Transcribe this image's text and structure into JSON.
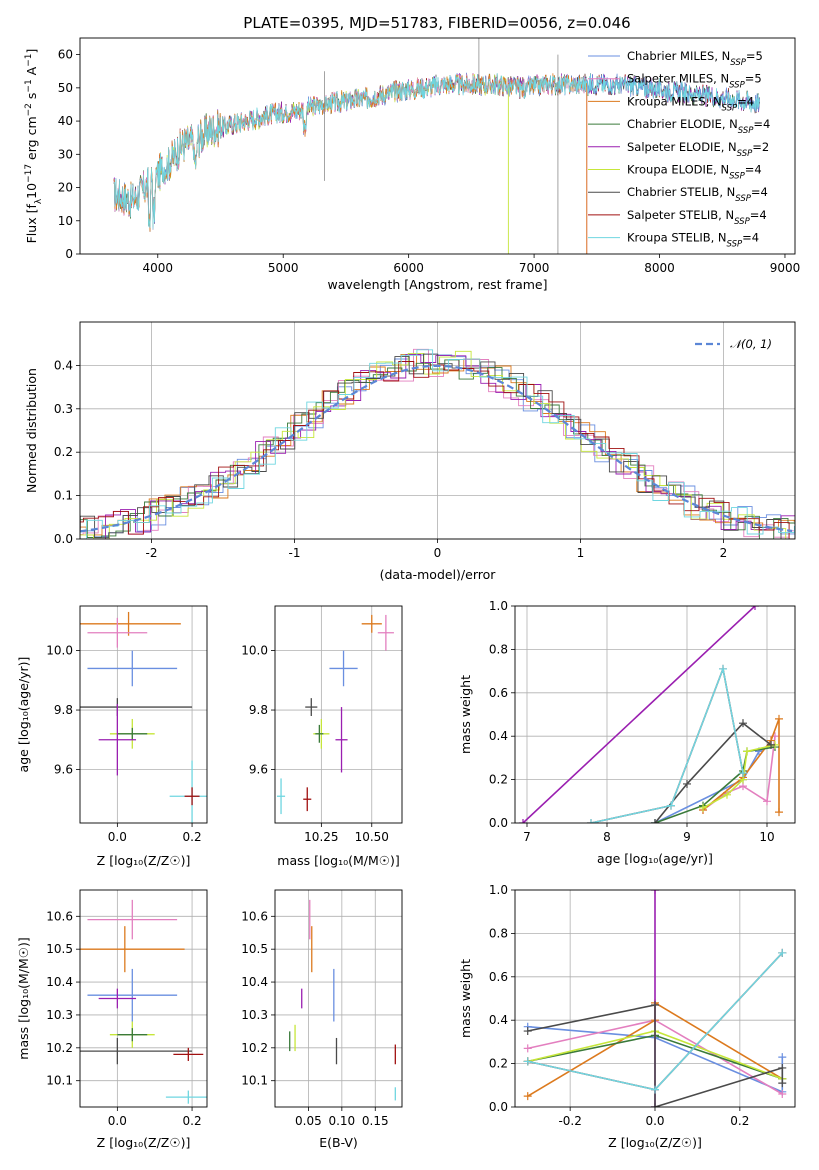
{
  "title": "PLATE=0395, MJD=51783, FIBERID=0056, z=0.046",
  "colors": {
    "Chabrier MILES": "#6a8fe0",
    "Salpeter MILES": "#e37fbf",
    "Kroupa MILES": "#dc7a1e",
    "Chabrier ELODIE": "#3a7a3a",
    "Salpeter ELODIE": "#9a1fb0",
    "Kroupa ELODIE": "#c6e63a",
    "Chabrier STELIB": "#4a4a4a",
    "Salpeter STELIB": "#a01010",
    "Kroupa STELIB": "#6fd6e0"
  },
  "chart_data": [
    {
      "id": "spectrum",
      "type": "line",
      "title": "PLATE=0395, MJD=51783, FIBERID=0056, z=0.046",
      "xlabel": "wavelength [Angstrom, rest frame]",
      "ylabel": "Flux [f_λ10^-17 erg cm^-2 s^-1 A^-1]",
      "xlim": [
        3380,
        9080
      ],
      "ylim": [
        0,
        65
      ],
      "xticks": [
        4000,
        5000,
        6000,
        7000,
        8000,
        9000
      ],
      "yticks": [
        0,
        10,
        20,
        30,
        40,
        50,
        60
      ],
      "legend": "top-right",
      "legend_entries": [
        {
          "series": "Chabrier MILES",
          "base": "Chabrier MILES, N",
          "sub": "SSP",
          "tail": "=5"
        },
        {
          "series": "Salpeter MILES",
          "base": "Salpeter MILES, N",
          "sub": "SSP",
          "tail": "=5"
        },
        {
          "series": "Kroupa MILES",
          "base": "Kroupa MILES, N",
          "sub": "SSP",
          "tail": "=4"
        },
        {
          "series": "Chabrier ELODIE",
          "base": "Chabrier ELODIE, N",
          "sub": "SSP",
          "tail": "=4"
        },
        {
          "series": "Salpeter ELODIE",
          "base": "Salpeter ELODIE, N",
          "sub": "SSP",
          "tail": "=2"
        },
        {
          "series": "Kroupa ELODIE",
          "base": "Kroupa ELODIE, N",
          "sub": "SSP",
          "tail": "=4"
        },
        {
          "series": "Chabrier STELIB",
          "base": "Chabrier STELIB, N",
          "sub": "SSP",
          "tail": "=4"
        },
        {
          "series": "Salpeter STELIB",
          "base": "Salpeter STELIB, N",
          "sub": "SSP",
          "tail": "=4"
        },
        {
          "series": "Kroupa STELIB",
          "base": "Kroupa STELIB, N",
          "sub": "SSP",
          "tail": "=4"
        }
      ],
      "continuum": [
        [
          3650,
          18
        ],
        [
          3800,
          16
        ],
        [
          3900,
          20
        ],
        [
          4000,
          24
        ],
        [
          4100,
          28
        ],
        [
          4200,
          33
        ],
        [
          4300,
          34
        ],
        [
          4400,
          37
        ],
        [
          4500,
          38
        ],
        [
          4700,
          40
        ],
        [
          4900,
          42
        ],
        [
          5100,
          43
        ],
        [
          5300,
          45
        ],
        [
          5500,
          46
        ],
        [
          5700,
          47
        ],
        [
          5900,
          49
        ],
        [
          6100,
          50
        ],
        [
          6300,
          51
        ],
        [
          6500,
          51
        ],
        [
          6700,
          51
        ],
        [
          6900,
          50
        ],
        [
          7100,
          51
        ],
        [
          7300,
          51
        ],
        [
          7500,
          51
        ],
        [
          7700,
          51
        ],
        [
          7900,
          50
        ],
        [
          8100,
          49
        ],
        [
          8300,
          48
        ],
        [
          8500,
          47
        ],
        [
          8700,
          46
        ],
        [
          8800,
          45
        ]
      ]
    },
    {
      "id": "residuals",
      "type": "line",
      "xlabel": "(data-model)/error",
      "ylabel": "Normed distribution",
      "xlim": [
        -2.5,
        2.5
      ],
      "ylim": [
        0,
        0.5
      ],
      "xticks": [
        -2,
        -1,
        0,
        1,
        2
      ],
      "yticks": [
        0.0,
        0.1,
        0.2,
        0.3,
        0.4
      ],
      "legend": "top-right",
      "legend_label": "𝒩(0, 1)",
      "series": [
        "Chabrier MILES",
        "Salpeter MILES",
        "Kroupa MILES",
        "Chabrier ELODIE",
        "Salpeter ELODIE",
        "Kroupa ELODIE",
        "Chabrier STELIB",
        "Salpeter STELIB",
        "Kroupa STELIB"
      ]
    },
    {
      "id": "age_vs_Z",
      "type": "scatter",
      "xlabel": "Z [log10(Z/Z⊙)]",
      "ylabel": "age [log10(age/yr)]",
      "xlim": [
        -0.1,
        0.24
      ],
      "ylim": [
        9.42,
        10.15
      ],
      "xticks": [
        0.0,
        0.2
      ],
      "yticks": [
        9.6,
        9.8,
        10.0
      ],
      "points": [
        {
          "series": "Kroupa MILES",
          "x": 0.03,
          "y": 10.09,
          "xerr": 0.14,
          "yerr": 0.04
        },
        {
          "series": "Salpeter MILES",
          "x": 0.0,
          "y": 10.06,
          "xerr": 0.08,
          "yerr": 0.05
        },
        {
          "series": "Chabrier MILES",
          "x": 0.04,
          "y": 9.94,
          "xerr": 0.12,
          "yerr": 0.06
        },
        {
          "series": "Chabrier STELIB",
          "x": 0.0,
          "y": 9.81,
          "xerr": 0.2,
          "yerr": 0.03
        },
        {
          "series": "Kroupa ELODIE",
          "x": 0.04,
          "y": 9.72,
          "xerr": 0.06,
          "yerr": 0.05
        },
        {
          "series": "Chabrier ELODIE",
          "x": 0.04,
          "y": 9.72,
          "xerr": 0.04,
          "yerr": 0.02
        },
        {
          "series": "Salpeter ELODIE",
          "x": 0.0,
          "y": 9.7,
          "xerr": 0.05,
          "yerr": 0.12
        },
        {
          "series": "Kroupa STELIB",
          "x": 0.2,
          "y": 9.51,
          "xerr": 0.06,
          "yerr": 0.12
        },
        {
          "series": "Salpeter STELIB",
          "x": 0.2,
          "y": 9.51,
          "xerr": 0.02,
          "yerr": 0.03
        }
      ]
    },
    {
      "id": "age_vs_mass",
      "type": "scatter",
      "xlabel": "mass [log10(M/M⊙)]",
      "ylabel": "",
      "xlim": [
        10.02,
        10.65
      ],
      "ylim": [
        9.42,
        10.15
      ],
      "xticks": [
        10.25,
        10.5
      ],
      "yticks": [
        9.6,
        9.8,
        10.0
      ],
      "points": [
        {
          "series": "Kroupa MILES",
          "x": 10.5,
          "y": 10.09,
          "xerr": 0.05,
          "yerr": 0.03
        },
        {
          "series": "Salpeter MILES",
          "x": 10.57,
          "y": 10.06,
          "xerr": 0.04,
          "yerr": 0.06
        },
        {
          "series": "Chabrier MILES",
          "x": 10.36,
          "y": 9.94,
          "xerr": 0.07,
          "yerr": 0.06
        },
        {
          "series": "Chabrier STELIB",
          "x": 10.2,
          "y": 9.81,
          "xerr": 0.03,
          "yerr": 0.03
        },
        {
          "series": "Kroupa ELODIE",
          "x": 10.25,
          "y": 9.72,
          "xerr": 0.04,
          "yerr": 0.05
        },
        {
          "series": "Chabrier ELODIE",
          "x": 10.24,
          "y": 9.72,
          "xerr": 0.02,
          "yerr": 0.03
        },
        {
          "series": "Salpeter ELODIE",
          "x": 10.35,
          "y": 9.7,
          "xerr": 0.03,
          "yerr": 0.11
        },
        {
          "series": "Salpeter STELIB",
          "x": 10.18,
          "y": 9.5,
          "xerr": 0.02,
          "yerr": 0.04
        },
        {
          "series": "Kroupa STELIB",
          "x": 10.05,
          "y": 9.51,
          "xerr": 0.02,
          "yerr": 0.06
        }
      ]
    },
    {
      "id": "weight_vs_age",
      "type": "line",
      "xlabel": "age [log10(age/yr)]",
      "ylabel": "mass weight",
      "xlim": [
        6.85,
        10.35
      ],
      "ylim": [
        0,
        1.0
      ],
      "xticks": [
        7,
        8,
        9,
        10
      ],
      "yticks": [
        0.0,
        0.2,
        0.4,
        0.6,
        0.8,
        1.0
      ],
      "series": [
        {
          "name": "Chabrier MILES",
          "x": [
            8.6,
            9.7,
            9.9,
            10.05
          ],
          "y": [
            0.0,
            0.2,
            0.33,
            0.36
          ]
        },
        {
          "name": "Salpeter MILES",
          "x": [
            9.2,
            9.5,
            9.7,
            10.0,
            10.1
          ],
          "y": [
            0.06,
            0.14,
            0.17,
            0.1,
            0.4
          ]
        },
        {
          "name": "Kroupa MILES",
          "x": [
            9.2,
            9.7,
            10.05,
            10.15,
            10.15
          ],
          "y": [
            0.06,
            0.21,
            0.38,
            0.48,
            0.05
          ]
        },
        {
          "name": "Chabrier ELODIE",
          "x": [
            8.6,
            9.2,
            9.7,
            9.75,
            10.1
          ],
          "y": [
            0.0,
            0.08,
            0.24,
            0.33,
            0.35
          ]
        },
        {
          "name": "Salpeter ELODIE",
          "x": [
            6.95,
            9.85
          ],
          "y": [
            0.0,
            1.0
          ]
        },
        {
          "name": "Kroupa ELODIE",
          "x": [
            9.2,
            9.5,
            9.7,
            9.75,
            10.1
          ],
          "y": [
            0.07,
            0.13,
            0.2,
            0.33,
            0.36
          ]
        },
        {
          "name": "Chabrier STELIB",
          "x": [
            8.6,
            9.0,
            9.7,
            10.05
          ],
          "y": [
            0.0,
            0.18,
            0.46,
            0.36
          ]
        },
        {
          "name": "Salpeter STELIB",
          "x": [
            7.8,
            8.8,
            9.45,
            9.7
          ],
          "y": [
            0.0,
            0.08,
            0.71,
            0.23
          ]
        },
        {
          "name": "Kroupa STELIB",
          "x": [
            7.8,
            8.8,
            9.45,
            9.7
          ],
          "y": [
            0.0,
            0.08,
            0.71,
            0.23
          ]
        }
      ]
    },
    {
      "id": "mass_vs_Z",
      "type": "scatter",
      "xlabel": "Z [log10(Z/Z⊙)]",
      "ylabel": "mass [log10(M/M⊙)]",
      "xlim": [
        -0.1,
        0.24
      ],
      "ylim": [
        10.02,
        10.68
      ],
      "xticks": [
        0.0,
        0.2
      ],
      "yticks": [
        10.1,
        10.2,
        10.3,
        10.4,
        10.5,
        10.6
      ],
      "points": [
        {
          "series": "Salpeter MILES",
          "x": 0.04,
          "y": 10.59,
          "xerr": 0.12,
          "yerr": 0.06
        },
        {
          "series": "Kroupa MILES",
          "x": 0.02,
          "y": 10.5,
          "xerr": 0.16,
          "yerr": 0.07
        },
        {
          "series": "Chabrier MILES",
          "x": 0.04,
          "y": 10.36,
          "xerr": 0.12,
          "yerr": 0.08
        },
        {
          "series": "Salpeter ELODIE",
          "x": 0.0,
          "y": 10.35,
          "xerr": 0.05,
          "yerr": 0.03
        },
        {
          "series": "Kroupa ELODIE",
          "x": 0.04,
          "y": 10.24,
          "xerr": 0.06,
          "yerr": 0.04
        },
        {
          "series": "Chabrier ELODIE",
          "x": 0.04,
          "y": 10.24,
          "xerr": 0.04,
          "yerr": 0.02
        },
        {
          "series": "Chabrier STELIB",
          "x": 0.0,
          "y": 10.19,
          "xerr": 0.2,
          "yerr": 0.04
        },
        {
          "series": "Salpeter STELIB",
          "x": 0.19,
          "y": 10.18,
          "xerr": 0.04,
          "yerr": 0.02
        },
        {
          "series": "Kroupa STELIB",
          "x": 0.19,
          "y": 10.05,
          "xerr": 0.06,
          "yerr": 0.02
        }
      ]
    },
    {
      "id": "mass_vs_EBV",
      "type": "scatter",
      "xlabel": "E(B-V)",
      "ylabel": "",
      "xlim": [
        0.0,
        0.19
      ],
      "ylim": [
        10.02,
        10.68
      ],
      "xticks": [
        0.05,
        0.1,
        0.15
      ],
      "yticks": [
        10.1,
        10.2,
        10.3,
        10.4,
        10.5,
        10.6
      ],
      "points": [
        {
          "series": "Salpeter MILES",
          "x": 0.052,
          "y": 10.59,
          "yerr": 0.06
        },
        {
          "series": "Kroupa MILES",
          "x": 0.055,
          "y": 10.5,
          "yerr": 0.07
        },
        {
          "series": "Chabrier MILES",
          "x": 0.088,
          "y": 10.36,
          "yerr": 0.08
        },
        {
          "series": "Salpeter ELODIE",
          "x": 0.04,
          "y": 10.35,
          "yerr": 0.03
        },
        {
          "series": "Kroupa ELODIE",
          "x": 0.03,
          "y": 10.23,
          "yerr": 0.04
        },
        {
          "series": "Chabrier ELODIE",
          "x": 0.022,
          "y": 10.22,
          "yerr": 0.03
        },
        {
          "series": "Chabrier STELIB",
          "x": 0.092,
          "y": 10.19,
          "yerr": 0.04
        },
        {
          "series": "Salpeter STELIB",
          "x": 0.18,
          "y": 10.18,
          "yerr": 0.03
        },
        {
          "series": "Kroupa STELIB",
          "x": 0.18,
          "y": 10.06,
          "yerr": 0.02
        }
      ]
    },
    {
      "id": "weight_vs_Z",
      "type": "line",
      "xlabel": "Z [log10(Z/Z⊙)]",
      "ylabel": "mass weight",
      "xlim": [
        -0.33,
        0.33
      ],
      "ylim": [
        0,
        1.0
      ],
      "xticks": [
        -0.2,
        0.0,
        0.2
      ],
      "yticks": [
        0.0,
        0.2,
        0.4,
        0.6,
        0.8,
        1.0
      ],
      "series": [
        {
          "name": "Chabrier MILES",
          "x": [
            -0.3,
            0.0,
            0.3,
            0.3
          ],
          "y": [
            0.37,
            0.32,
            0.07,
            0.23
          ]
        },
        {
          "name": "Salpeter MILES",
          "x": [
            -0.3,
            0.0,
            0.3
          ],
          "y": [
            0.27,
            0.4,
            0.06
          ]
        },
        {
          "name": "Kroupa MILES",
          "x": [
            -0.3,
            0.0,
            0.0,
            0.3
          ],
          "y": [
            0.05,
            0.4,
            0.48,
            0.13
          ]
        },
        {
          "name": "Chabrier ELODIE",
          "x": [
            -0.3,
            0.0,
            0.3
          ],
          "y": [
            0.21,
            0.33,
            0.13
          ]
        },
        {
          "name": "Salpeter ELODIE",
          "x": [
            0.0,
            0.0
          ],
          "y": [
            0.0,
            1.0
          ]
        },
        {
          "name": "Kroupa ELODIE",
          "x": [
            -0.3,
            0.0,
            0.3
          ],
          "y": [
            0.21,
            0.35,
            0.13
          ]
        },
        {
          "name": "Chabrier STELIB",
          "x": [
            -0.3,
            0.0,
            0.0,
            0.3,
            0.3
          ],
          "y": [
            0.35,
            0.47,
            0.0,
            0.18,
            0.11
          ]
        },
        {
          "name": "Salpeter STELIB",
          "x": [
            -0.3,
            0.0,
            0.3
          ],
          "y": [
            0.21,
            0.08,
            0.71
          ]
        },
        {
          "name": "Kroupa STELIB",
          "x": [
            -0.3,
            0.0,
            0.3
          ],
          "y": [
            0.21,
            0.08,
            0.71
          ]
        }
      ]
    }
  ]
}
